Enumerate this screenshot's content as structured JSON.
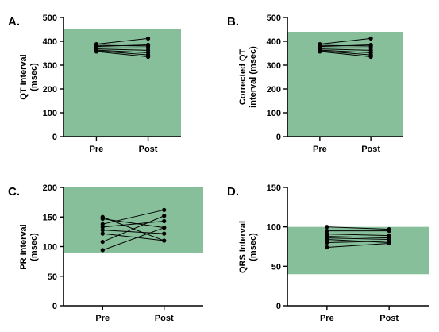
{
  "chart_data": [
    {
      "type": "line",
      "panel": "A.",
      "ylabel_lines": [
        "QT Interval",
        "(msec)"
      ],
      "categories": [
        "Pre",
        "Post"
      ],
      "ylim": [
        0,
        500
      ],
      "yticks": [
        0,
        100,
        200,
        300,
        400,
        500
      ],
      "normal_band": [
        0,
        450
      ],
      "pairs": [
        [
          388,
          412
        ],
        [
          383,
          380
        ],
        [
          378,
          385
        ],
        [
          372,
          372
        ],
        [
          368,
          362
        ],
        [
          363,
          352
        ],
        [
          360,
          343
        ],
        [
          357,
          335
        ]
      ]
    },
    {
      "type": "line",
      "panel": "B.",
      "ylabel_lines": [
        "Corrected QT",
        "interval (msec)"
      ],
      "categories": [
        "Pre",
        "Post"
      ],
      "ylim": [
        0,
        500
      ],
      "yticks": [
        0,
        100,
        200,
        300,
        400,
        500
      ],
      "normal_band": [
        0,
        440
      ],
      "pairs": [
        [
          388,
          412
        ],
        [
          383,
          380
        ],
        [
          378,
          385
        ],
        [
          372,
          372
        ],
        [
          368,
          362
        ],
        [
          363,
          352
        ],
        [
          360,
          343
        ],
        [
          357,
          335
        ]
      ]
    },
    {
      "type": "line",
      "panel": "C.",
      "ylabel_lines": [
        "PR Interval",
        "(msec)"
      ],
      "categories": [
        "Pre",
        "Post"
      ],
      "ylim": [
        0,
        200
      ],
      "yticks": [
        0,
        50,
        100,
        150,
        200
      ],
      "normal_band": [
        90,
        200
      ],
      "pairs": [
        [
          150,
          110
        ],
        [
          147,
          132
        ],
        [
          138,
          162
        ],
        [
          133,
          143
        ],
        [
          128,
          122
        ],
        [
          122,
          110
        ],
        [
          108,
          152
        ],
        [
          94,
          132
        ]
      ]
    },
    {
      "type": "line",
      "panel": "D.",
      "ylabel_lines": [
        "QRS Interval",
        "(msec)"
      ],
      "categories": [
        "Pre",
        "Post"
      ],
      "ylim": [
        0,
        150
      ],
      "yticks": [
        0,
        50,
        100,
        150
      ],
      "normal_band": [
        40,
        100
      ],
      "pairs": [
        [
          100,
          97
        ],
        [
          95,
          95
        ],
        [
          91,
          89
        ],
        [
          88,
          86
        ],
        [
          86,
          84
        ],
        [
          84,
          80
        ],
        [
          80,
          82
        ],
        [
          74,
          79
        ]
      ]
    }
  ],
  "colors": {
    "band": "#86bf9a",
    "line": "#000000",
    "point": "#000000"
  }
}
